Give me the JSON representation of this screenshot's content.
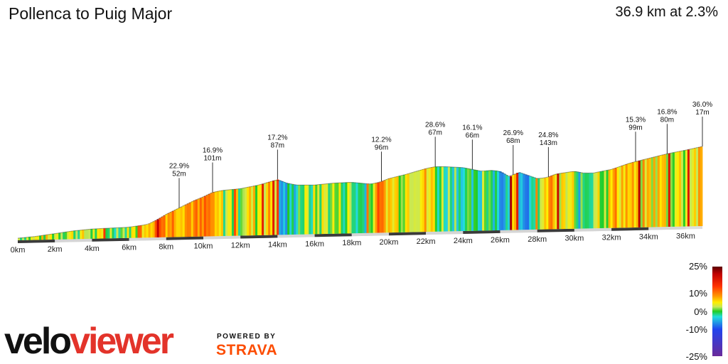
{
  "header": {
    "title": "Pollenca to Puig Major",
    "stats": "36.9 km at 2.3%"
  },
  "chart_data": {
    "type": "area",
    "title": "Pollenca to Puig Major",
    "subtitle": "36.9 km at 2.3%",
    "xlabel": "",
    "ylabel": "",
    "xlim": [
      0,
      36.9
    ],
    "x_ticks": [
      {
        "km": 0,
        "label": "0km"
      },
      {
        "km": 2,
        "label": "2km"
      },
      {
        "km": 4,
        "label": "4km"
      },
      {
        "km": 6,
        "label": "6km"
      },
      {
        "km": 8,
        "label": "8km"
      },
      {
        "km": 10,
        "label": "10km"
      },
      {
        "km": 12,
        "label": "12km"
      },
      {
        "km": 14,
        "label": "14km"
      },
      {
        "km": 16,
        "label": "16km"
      },
      {
        "km": 18,
        "label": "18km"
      },
      {
        "km": 20,
        "label": "20km"
      },
      {
        "km": 22,
        "label": "22km"
      },
      {
        "km": 24,
        "label": "24km"
      },
      {
        "km": 26,
        "label": "26km"
      },
      {
        "km": 28,
        "label": "28km"
      },
      {
        "km": 30,
        "label": "30km"
      },
      {
        "km": 32,
        "label": "32km"
      },
      {
        "km": 34,
        "label": "34km"
      },
      {
        "km": 36,
        "label": "36km"
      }
    ],
    "profile_x_km": [
      0,
      1,
      2,
      3,
      4,
      5,
      6,
      7,
      7.5,
      8,
      8.5,
      9,
      9.5,
      10,
      10.5,
      11,
      12,
      13,
      14,
      14.5,
      15,
      15.5,
      16,
      17,
      18,
      19,
      19.5,
      20,
      21,
      22,
      22.5,
      23,
      24,
      25,
      25.5,
      26,
      26.5,
      27,
      28,
      28.5,
      29,
      30,
      30.5,
      31,
      32,
      33,
      34,
      35,
      36,
      36.9
    ],
    "profile_height_rel": [
      0,
      0.02,
      0.05,
      0.08,
      0.1,
      0.11,
      0.12,
      0.15,
      0.2,
      0.26,
      0.31,
      0.36,
      0.41,
      0.45,
      0.5,
      0.52,
      0.54,
      0.58,
      0.64,
      0.6,
      0.58,
      0.58,
      0.58,
      0.6,
      0.61,
      0.59,
      0.61,
      0.65,
      0.7,
      0.76,
      0.78,
      0.78,
      0.77,
      0.73,
      0.74,
      0.73,
      0.67,
      0.72,
      0.65,
      0.66,
      0.7,
      0.73,
      0.71,
      0.71,
      0.75,
      0.82,
      0.87,
      0.92,
      0.96,
      1.0
    ],
    "annotations": [
      {
        "km": 8.7,
        "grade": "22.9%",
        "length": "52m"
      },
      {
        "km": 10.5,
        "grade": "16.9%",
        "length": "101m"
      },
      {
        "km": 14.0,
        "grade": "17.2%",
        "length": "87m"
      },
      {
        "km": 19.6,
        "grade": "12.2%",
        "length": "96m"
      },
      {
        "km": 22.5,
        "grade": "28.6%",
        "length": "67m"
      },
      {
        "km": 24.5,
        "grade": "16.1%",
        "length": "66m"
      },
      {
        "km": 26.7,
        "grade": "26.9%",
        "length": "68m"
      },
      {
        "km": 28.6,
        "grade": "24.8%",
        "length": "143m"
      },
      {
        "km": 33.3,
        "grade": "15.3%",
        "length": "99m"
      },
      {
        "km": 35.0,
        "grade": "16.8%",
        "length": "80m"
      },
      {
        "km": 36.9,
        "grade": "36.0%",
        "length": "17m"
      }
    ],
    "color_scale": {
      "labels": [
        "25%",
        "10%",
        "0%",
        "-10%",
        "-25%"
      ],
      "stops": [
        {
          "grade": 25,
          "color": "#5a0000"
        },
        {
          "grade": 15,
          "color": "#c00000"
        },
        {
          "grade": 10,
          "color": "#ff3300"
        },
        {
          "grade": 6,
          "color": "#ff9900"
        },
        {
          "grade": 3,
          "color": "#ffee00"
        },
        {
          "grade": 1,
          "color": "#c6e858"
        },
        {
          "grade": 0,
          "color": "#22cc22"
        },
        {
          "grade": -3,
          "color": "#22dddd"
        },
        {
          "grade": -10,
          "color": "#2244ee"
        },
        {
          "grade": -25,
          "color": "#6a2a9a"
        }
      ]
    }
  },
  "branding": {
    "logo_part1": "velo",
    "logo_part2": "viewer",
    "powered_by": "POWERED BY",
    "strava": "STRAVA"
  }
}
